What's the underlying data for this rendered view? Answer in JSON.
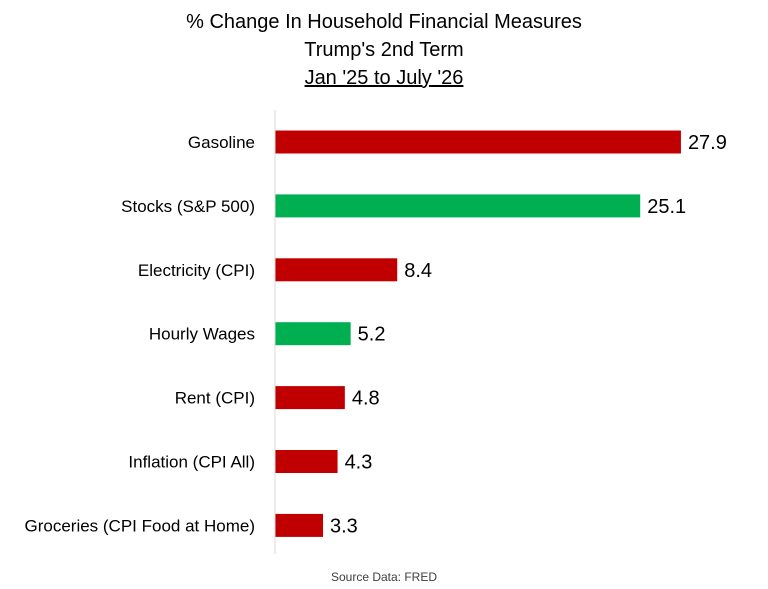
{
  "chart_data": {
    "type": "bar",
    "orientation": "horizontal",
    "title": "% Change In Household Financial Measures",
    "subtitle": "Trump's 2nd Term",
    "subtitle2": "Jan '25 to July '26",
    "categories": [
      "Gasoline",
      "Stocks (S&P 500)",
      "Electricity (CPI)",
      "Hourly Wages",
      "Rent (CPI)",
      "Inflation (CPI All)",
      "Groceries (CPI Food at Home)"
    ],
    "values": [
      27.9,
      25.1,
      8.4,
      5.2,
      4.8,
      4.3,
      3.3
    ],
    "colors": [
      "#c00000",
      "#00b050",
      "#c00000",
      "#00b050",
      "#c00000",
      "#c00000",
      "#c00000"
    ],
    "xlim": [
      0,
      30
    ],
    "grid": false,
    "legend": "none",
    "source": "Source Data: FRED"
  }
}
